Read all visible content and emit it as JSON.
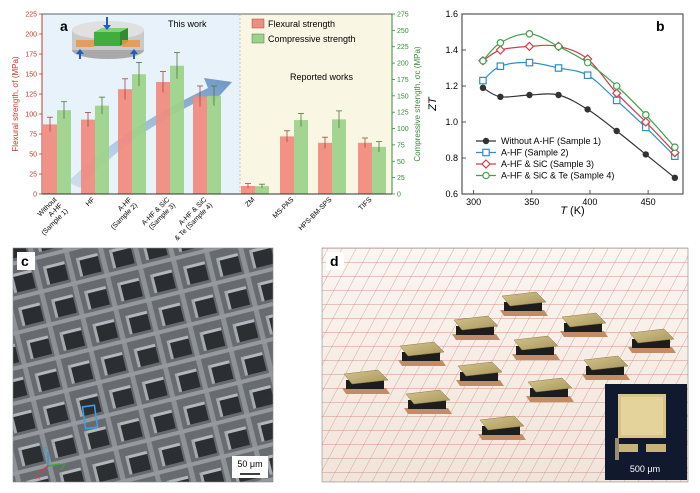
{
  "panels": {
    "a": "a",
    "b": "b",
    "c": "c",
    "d": "d"
  },
  "chart_data": [
    {
      "type": "bar",
      "panel": "a",
      "categories": [
        "Without A-HF (Sample 1)",
        "HF",
        "A-HF (Sample 2)",
        "A-HF & SiC (Sample 3)",
        "A-HF & SiC & Te (Sample 4)",
        "ZM",
        "MS-PAS",
        "HPS-BM-SPS",
        "TIFS"
      ],
      "category_lines": [
        [
          "Without",
          "A-HF",
          "(Sample 1)"
        ],
        [
          "HF"
        ],
        [
          "A-HF",
          "(Sample 2)"
        ],
        [
          "A-HF & SiC",
          "(Sample 3)"
        ],
        [
          "A-HF & SiC",
          "& Te (Sample 4)"
        ],
        [
          "ZM"
        ],
        [
          "MS-PAS"
        ],
        [
          "HPS-BM-SPS"
        ],
        [
          "TIFS"
        ]
      ],
      "series": [
        {
          "name": "Flexural strength",
          "axis": "left",
          "color": "#f08c80",
          "values": [
            87,
            93,
            131,
            140,
            122,
            10,
            72,
            64,
            64
          ],
          "errors": [
            9,
            9,
            13,
            13,
            13,
            3,
            7,
            7,
            6
          ]
        },
        {
          "name": "Compressive strength",
          "axis": "right",
          "color": "#9ed28c",
          "values": [
            128,
            135,
            183,
            196,
            150,
            12,
            113,
            114,
            72
          ],
          "errors": [
            13,
            13,
            18,
            20,
            15,
            3,
            10,
            13,
            8
          ]
        }
      ],
      "ylabel_left": "Flexural strength, σf (MPa)",
      "ylabel_right": "Compressive strength, σc (MPa)",
      "ylim_left": [
        0,
        225
      ],
      "ylim_right": [
        0,
        275
      ],
      "yticks_left": [
        0,
        25,
        50,
        75,
        100,
        125,
        150,
        175,
        200,
        225
      ],
      "yticks_right": [
        0,
        25,
        50,
        75,
        100,
        125,
        150,
        175,
        200,
        225,
        250,
        275
      ],
      "annotations": [
        "This work",
        "Reported works"
      ],
      "axis_colors": {
        "left": "#c0392b",
        "right": "#3a8a3a"
      },
      "region_colors": {
        "this_work": "#e8f2fa",
        "reported": "#faf6e4"
      }
    },
    {
      "type": "line",
      "panel": "b",
      "xlabel": "T (K)",
      "ylabel": "ZT",
      "xlim": [
        290,
        480
      ],
      "ylim": [
        0.6,
        1.6
      ],
      "xticks": [
        300,
        350,
        400,
        450
      ],
      "yticks": [
        0.6,
        0.8,
        1.0,
        1.2,
        1.4,
        1.6
      ],
      "series": [
        {
          "name": "Without A-HF (Sample 1)",
          "marker": "circle-filled",
          "color": "#333333",
          "x": [
            308,
            323,
            348,
            373,
            398,
            423,
            448,
            473
          ],
          "y": [
            1.19,
            1.14,
            1.15,
            1.15,
            1.07,
            0.95,
            0.82,
            0.69
          ]
        },
        {
          "name": "A-HF (Sample 2)",
          "marker": "square",
          "color": "#2c8fc9",
          "x": [
            308,
            323,
            348,
            373,
            398,
            423,
            448,
            473
          ],
          "y": [
            1.23,
            1.31,
            1.33,
            1.3,
            1.26,
            1.12,
            0.97,
            0.81
          ]
        },
        {
          "name": "A-HF & SiC (Sample 3)",
          "marker": "diamond",
          "color": "#d23c4a",
          "x": [
            308,
            323,
            348,
            373,
            398,
            423,
            448,
            473
          ],
          "y": [
            1.34,
            1.4,
            1.42,
            1.42,
            1.35,
            1.16,
            1.0,
            0.83
          ]
        },
        {
          "name": "A-HF & SiC & Te (Sample 4)",
          "marker": "circle",
          "color": "#3fa34d",
          "x": [
            308,
            323,
            348,
            373,
            398,
            423,
            448,
            473
          ],
          "y": [
            1.34,
            1.44,
            1.49,
            1.42,
            1.33,
            1.2,
            1.04,
            0.86
          ]
        }
      ],
      "legend": "bottom-left"
    }
  ],
  "panel_c": {
    "scale_label": "50 μm",
    "axes": [
      "z",
      "x",
      "y"
    ]
  },
  "panel_d": {
    "scale_label": "500 μm"
  }
}
